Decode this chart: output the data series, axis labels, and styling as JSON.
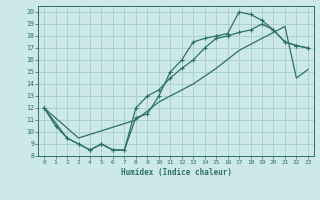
{
  "xlabel": "Humidex (Indice chaleur)",
  "bg_color": "#cce8e8",
  "line_color": "#2d7068",
  "grid_color": "#aad0d0",
  "xlim": [
    -0.5,
    23.5
  ],
  "ylim": [
    8,
    20.5
  ],
  "xticks": [
    0,
    1,
    2,
    3,
    4,
    5,
    6,
    7,
    8,
    9,
    10,
    11,
    12,
    13,
    14,
    15,
    16,
    17,
    18,
    19,
    20,
    21,
    22,
    23
  ],
  "yticks": [
    8,
    9,
    10,
    11,
    12,
    13,
    14,
    15,
    16,
    17,
    18,
    19,
    20
  ],
  "line1_x": [
    0,
    1,
    2,
    3,
    4,
    5,
    6,
    7,
    8,
    9,
    10,
    11,
    12,
    13,
    14,
    15,
    16,
    17,
    18,
    19,
    20,
    21,
    22,
    23
  ],
  "line1_y": [
    12.0,
    10.5,
    9.5,
    9.0,
    8.5,
    9.0,
    8.5,
    8.5,
    11.2,
    11.5,
    13.0,
    15.0,
    16.0,
    17.5,
    17.8,
    18.0,
    18.2,
    20.0,
    19.8,
    19.3,
    18.5,
    17.5,
    17.2,
    17.0
  ],
  "line2_x": [
    0,
    2,
    3,
    4,
    5,
    6,
    7,
    8,
    9,
    10,
    11,
    12,
    13,
    14,
    15,
    16,
    17,
    18,
    19,
    20,
    21,
    22,
    23
  ],
  "line2_y": [
    12.0,
    9.5,
    9.0,
    8.5,
    9.0,
    8.5,
    8.5,
    12.0,
    13.0,
    13.5,
    14.5,
    15.3,
    16.0,
    17.0,
    17.8,
    18.0,
    18.3,
    18.5,
    19.0,
    18.5,
    17.5,
    17.2,
    17.0
  ],
  "line3_x": [
    0,
    3,
    8,
    10,
    13,
    15,
    17,
    18,
    19,
    20,
    21,
    22,
    23
  ],
  "line3_y": [
    12.0,
    9.5,
    11.0,
    12.5,
    14.0,
    15.3,
    16.8,
    17.3,
    17.8,
    18.3,
    18.8,
    14.5,
    15.2
  ]
}
